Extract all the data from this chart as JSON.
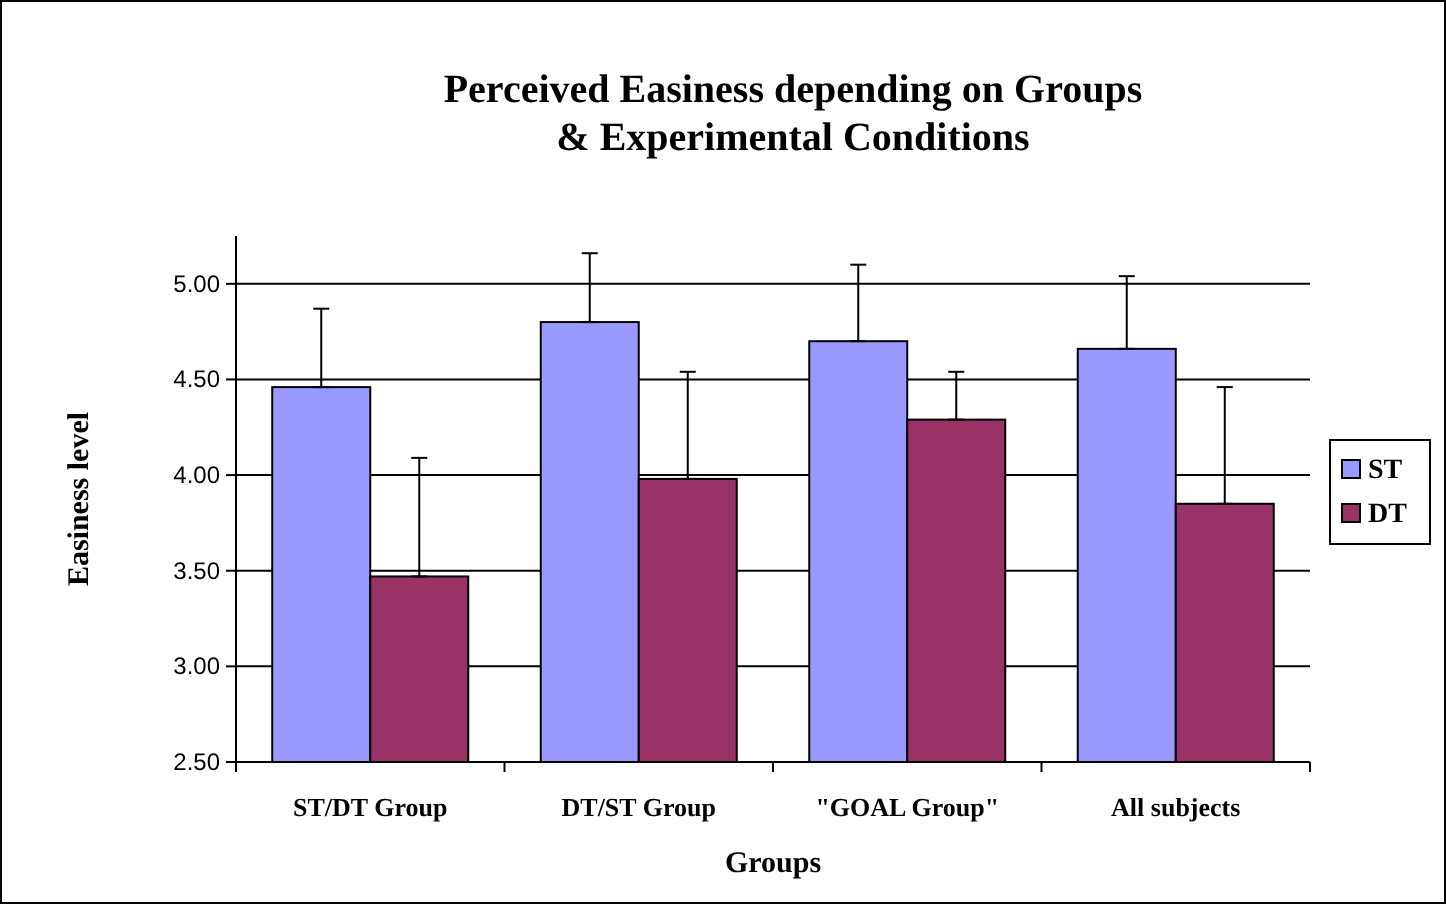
{
  "chart_data": {
    "type": "bar",
    "title": "Perceived Easiness depending on Groups\n& Experimental Conditions",
    "xlabel": "Groups",
    "ylabel": "Easiness level",
    "categories": [
      "ST/DT Group",
      "DT/ST Group",
      "\"GOAL Group\"",
      "All subjects"
    ],
    "series": [
      {
        "name": "ST",
        "color": "#9999ff",
        "values": [
          4.46,
          4.8,
          4.7,
          4.66
        ],
        "errors": [
          [
            4.46,
            4.87
          ],
          [
            4.8,
            5.16
          ],
          [
            4.7,
            5.1
          ],
          [
            4.66,
            5.04
          ]
        ]
      },
      {
        "name": "DT",
        "color": "#993366",
        "values": [
          3.47,
          3.98,
          4.29,
          3.85
        ],
        "errors": [
          [
            3.47,
            4.09
          ],
          [
            3.98,
            4.54
          ],
          [
            4.29,
            4.54
          ],
          [
            3.85,
            4.46
          ]
        ]
      }
    ],
    "ylim": [
      2.5,
      5.25
    ],
    "yticks": [
      {
        "value": 2.5,
        "label": "2.50"
      },
      {
        "value": 3,
        "label": "3.00"
      },
      {
        "value": 3.5,
        "label": "3.50"
      },
      {
        "value": 4,
        "label": "4.00"
      },
      {
        "value": 4.5,
        "label": "4.50"
      },
      {
        "value": 5,
        "label": "5.00"
      }
    ],
    "grid": "y",
    "legend": "right"
  }
}
